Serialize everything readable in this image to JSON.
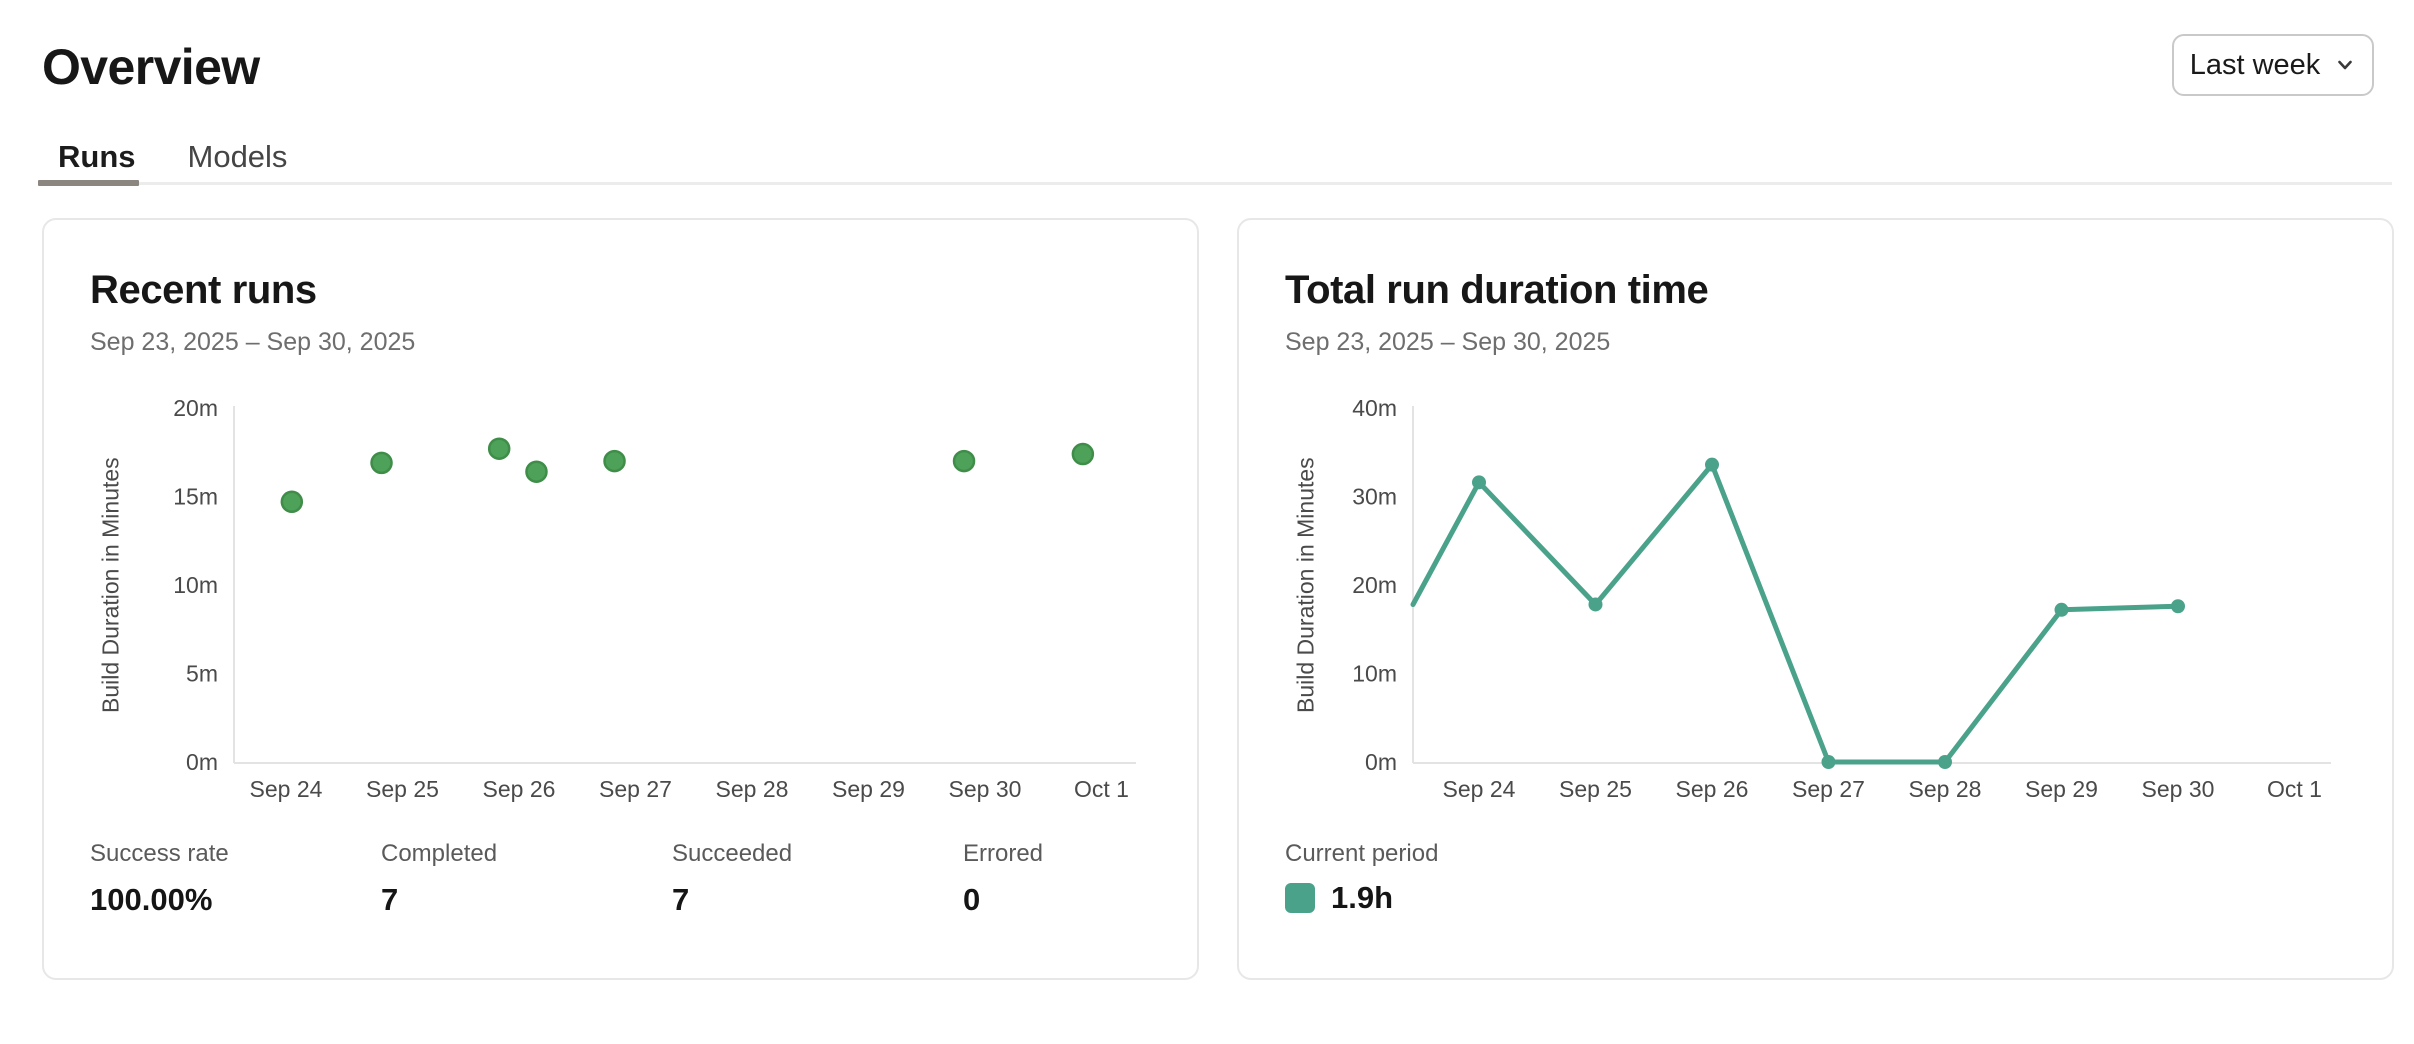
{
  "page": {
    "title": "Overview"
  },
  "period_selector": {
    "value": "Last week",
    "icon": "chevron-down-icon"
  },
  "tabs": [
    {
      "label": "Runs",
      "active": true
    },
    {
      "label": "Models",
      "active": false
    }
  ],
  "recent_runs": {
    "stats": [
      {
        "label": "Success rate",
        "value": "100.00%"
      },
      {
        "label": "Completed",
        "value": "7"
      },
      {
        "label": "Succeeded",
        "value": "7"
      },
      {
        "label": "Errored",
        "value": "0"
      }
    ]
  },
  "total_duration": {
    "legend": {
      "label": "Current period",
      "value": "1.9h",
      "color": "#4ba28b"
    }
  },
  "colors": {
    "scatter_point_fill": "#4da158",
    "scatter_point_border": "#3f8d49",
    "line_series": "#4ba28b",
    "axis_line": "#e3e3e3",
    "tick_text": "#4a4a4a",
    "tab_indicator": "#8c8680",
    "card_border": "#e7e7e7"
  },
  "chart_data": [
    {
      "type": "scatter",
      "title": "Recent runs",
      "date_range": "Sep 23, 2025 – Sep 30, 2025",
      "xlabel": "",
      "ylabel": "Build Duration in Minutes",
      "x_ticks": [
        "Sep 24",
        "Sep 25",
        "Sep 26",
        "Sep 27",
        "Sep 28",
        "Sep 29",
        "Sep 30",
        "Oct 1"
      ],
      "y_ticks": [
        "0m",
        "5m",
        "10m",
        "15m",
        "20m"
      ],
      "ylim_minutes": [
        0,
        20
      ],
      "grid": false,
      "points": [
        {
          "x_day": 0.05,
          "minutes": 14.7
        },
        {
          "x_day": 0.82,
          "minutes": 16.9
        },
        {
          "x_day": 1.83,
          "minutes": 17.7
        },
        {
          "x_day": 2.15,
          "minutes": 16.4
        },
        {
          "x_day": 2.82,
          "minutes": 17.0
        },
        {
          "x_day": 5.82,
          "minutes": 17.0
        },
        {
          "x_day": 6.84,
          "minutes": 17.4
        }
      ]
    },
    {
      "type": "line",
      "title": "Total run duration time",
      "date_range": "Sep 23, 2025 – Sep 30, 2025",
      "xlabel": "",
      "ylabel": "Build Duration in Minutes",
      "x_ticks": [
        "Sep 24",
        "Sep 25",
        "Sep 26",
        "Sep 27",
        "Sep 28",
        "Sep 29",
        "Sep 30",
        "Oct 1"
      ],
      "y_ticks": [
        "0m",
        "10m",
        "20m",
        "30m",
        "40m"
      ],
      "ylim_minutes": [
        0,
        40
      ],
      "grid": false,
      "legend_position": "bottom-left",
      "series": [
        {
          "name": "Current period",
          "color": "#4ba28b",
          "points": [
            {
              "label": "Sep 23",
              "at_axis": true,
              "minutes": 17.8,
              "marker": false
            },
            {
              "label": "Sep 24",
              "x_day": 0,
              "minutes": 31.6,
              "marker": true
            },
            {
              "label": "Sep 25",
              "x_day": 1,
              "minutes": 17.8,
              "marker": true
            },
            {
              "label": "Sep 26",
              "x_day": 2,
              "minutes": 33.6,
              "marker": true
            },
            {
              "label": "Sep 27",
              "x_day": 3,
              "minutes": 0,
              "marker": true
            },
            {
              "label": "Sep 28",
              "x_day": 4,
              "minutes": 0,
              "marker": true
            },
            {
              "label": "Sep 29",
              "x_day": 5,
              "minutes": 17.2,
              "marker": true
            },
            {
              "label": "Sep 30",
              "x_day": 6,
              "minutes": 17.6,
              "marker": true
            }
          ]
        }
      ]
    }
  ]
}
